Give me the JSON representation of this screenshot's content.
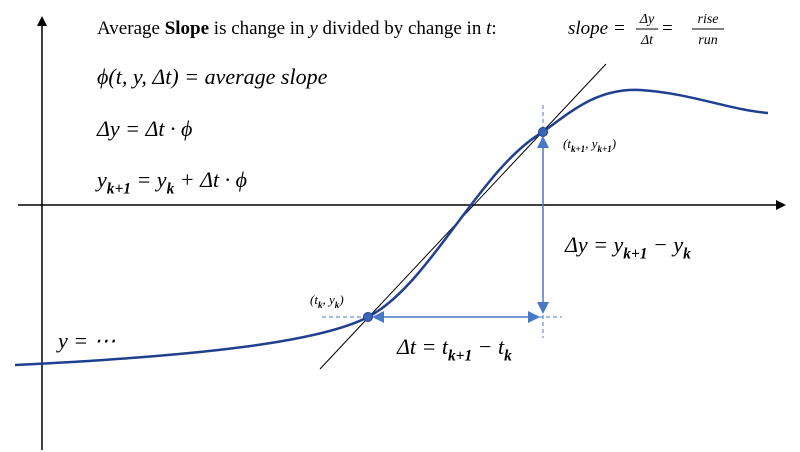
{
  "title": {
    "text1": "Average ",
    "bold": "Slope",
    "text2": " is change in ",
    "var1": "y",
    "text3": " divided by change in ",
    "var2": "t",
    "text4": ":"
  },
  "slope_formula": {
    "lhs": "slope =",
    "numerator": "Δy",
    "denominator": "Δt",
    "equals": "=",
    "rise": "rise",
    "run": "run"
  },
  "equations": [
    {
      "parts": [
        "ϕ(t, y, Δt) = average slope"
      ]
    },
    {
      "parts": [
        "Δy = Δt · ϕ"
      ]
    },
    {
      "parts": [
        "y",
        "k+1",
        " = y",
        "k",
        " + Δt  · ϕ"
      ]
    }
  ],
  "point_labels": [
    {
      "parts": [
        "(t",
        "k",
        ", y",
        "k",
        ")"
      ]
    },
    {
      "parts": [
        "(t",
        "k+1",
        ", y",
        "k+1",
        ")"
      ]
    }
  ],
  "delta_y": {
    "parts": [
      "Δy = y",
      "k+1",
      " − y",
      "k"
    ]
  },
  "delta_t": {
    "parts": [
      "Δt = t",
      "k+1",
      " − t",
      "k"
    ]
  },
  "curve_label": "y = ⋯"
}
